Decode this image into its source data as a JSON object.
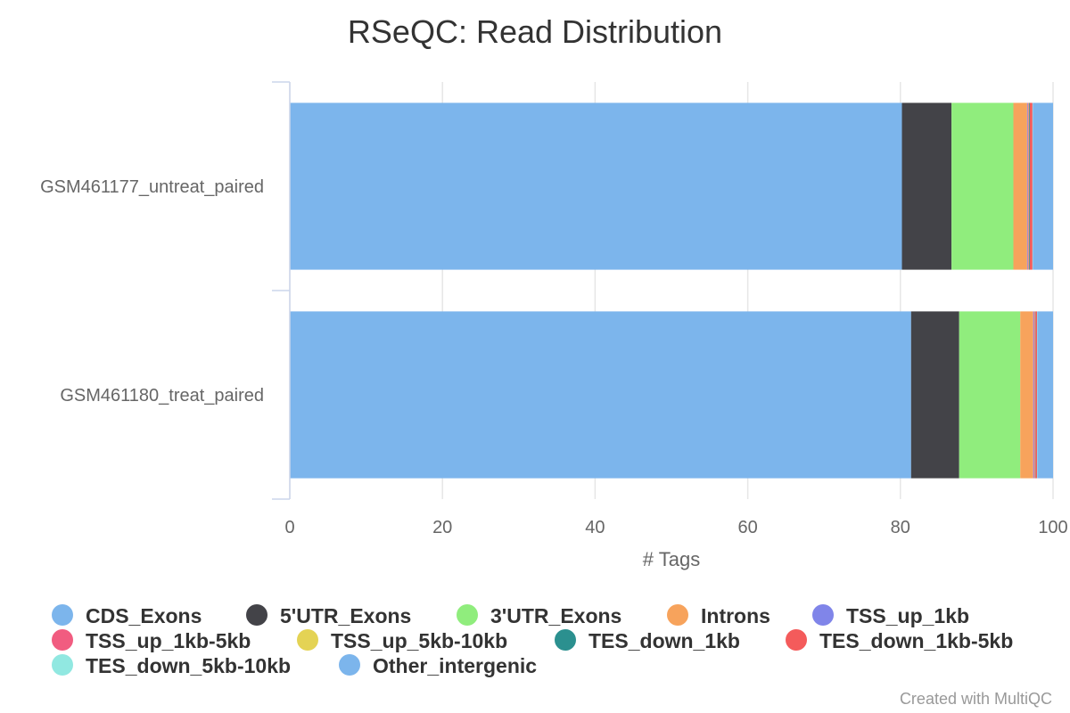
{
  "chart_data": {
    "type": "bar",
    "orientation": "horizontal",
    "stacked": true,
    "title": "RSeQC: Read Distribution",
    "xlabel": "# Tags",
    "ylabel": "",
    "xlim": [
      0,
      100
    ],
    "x_ticks": [
      "0",
      "20",
      "40",
      "60",
      "80",
      "100"
    ],
    "grid": true,
    "legend_position": "bottom",
    "categories": [
      "GSM461177_untreat_paired",
      "GSM461180_treat_paired"
    ],
    "series": [
      {
        "name": "CDS_Exons",
        "color": "#7cb5ec",
        "values": [
          80.2,
          81.4
        ]
      },
      {
        "name": "5'UTR_Exons",
        "color": "#434348",
        "values": [
          6.5,
          6.3
        ]
      },
      {
        "name": "3'UTR_Exons",
        "color": "#90ed7d",
        "values": [
          8.1,
          8.0
        ]
      },
      {
        "name": "Introns",
        "color": "#f7a35c",
        "values": [
          1.8,
          1.7
        ]
      },
      {
        "name": "TSS_up_1kb",
        "color": "#8085e9",
        "values": [
          0.1,
          0.1
        ]
      },
      {
        "name": "TSS_up_1kb-5kb",
        "color": "#f15c80",
        "values": [
          0.1,
          0.1
        ]
      },
      {
        "name": "TSS_up_5kb-10kb",
        "color": "#e4d354",
        "values": [
          0.05,
          0.05
        ]
      },
      {
        "name": "TES_down_1kb",
        "color": "#2b908f",
        "values": [
          0.1,
          0.05
        ]
      },
      {
        "name": "TES_down_1kb-5kb",
        "color": "#f45b5b",
        "values": [
          0.35,
          0.2
        ]
      },
      {
        "name": "TES_down_5kb-10kb",
        "color": "#91e8e1",
        "values": [
          0.05,
          0.05
        ]
      },
      {
        "name": "Other_intergenic",
        "color": "#7cb5ec",
        "values": [
          2.65,
          2.05
        ]
      }
    ]
  },
  "credits": "Created with MultiQC"
}
